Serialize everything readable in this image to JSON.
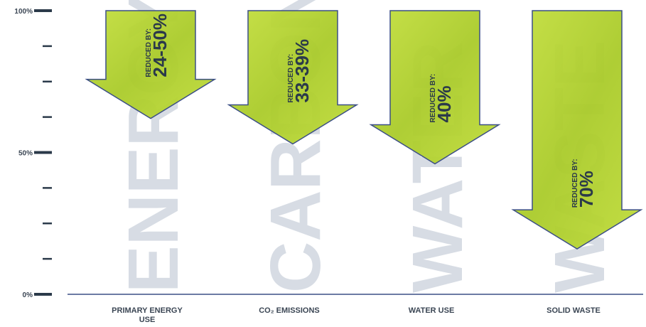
{
  "chart_data": {
    "type": "bar",
    "orientation": "downward-arrows",
    "y_ticks": [
      {
        "value": 100,
        "label": "100%"
      },
      {
        "value": 87.5,
        "label": ""
      },
      {
        "value": 75,
        "label": ""
      },
      {
        "value": 62.5,
        "label": ""
      },
      {
        "value": 50,
        "label": "50%"
      },
      {
        "value": 37.5,
        "label": ""
      },
      {
        "value": 25,
        "label": ""
      },
      {
        "value": 12.5,
        "label": ""
      },
      {
        "value": 0,
        "label": "0%"
      }
    ],
    "ylim": [
      0,
      100
    ],
    "categories": [
      "PRIMARY ENERGY USE",
      "CO₂ EMISSIONS",
      "WATER USE",
      "SOLID WASTE"
    ],
    "ghost_words": [
      "ENERGY",
      "CARBON",
      "WATER",
      "WASTE"
    ],
    "reduced_prefix": "REDUCED BY:",
    "reduction_labels": [
      "24-50%",
      "33-39%",
      "40%",
      "70%"
    ],
    "reduction_values": [
      50,
      39,
      40,
      70
    ],
    "arrow_tip_levels": [
      62,
      53,
      46,
      16
    ],
    "colors": {
      "arrow_fill": "#b6d433",
      "arrow_fill_dark": "#8fb21e",
      "arrow_outline": "#3c4f86",
      "axis": "#3c4f86",
      "text": "#2b3a4a",
      "ghost": "#b7c1cf"
    },
    "grid": false,
    "legend": "none",
    "title": "",
    "xlabel": "",
    "ylabel": ""
  }
}
